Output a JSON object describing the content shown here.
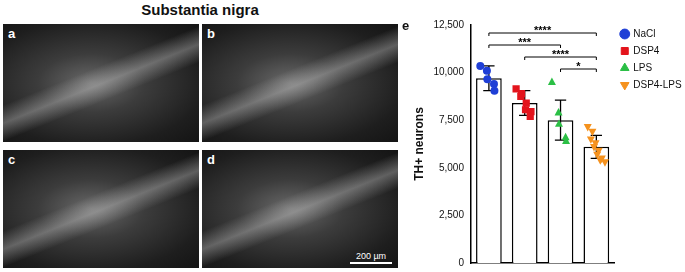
{
  "title": "Substantia nigra",
  "panels": [
    {
      "label": "a"
    },
    {
      "label": "b"
    },
    {
      "label": "c"
    },
    {
      "label": "d",
      "scale_bar": "200 µm"
    }
  ],
  "chart_data": {
    "type": "bar",
    "panel_label": "e",
    "ylabel": "TH+ neurons",
    "categories": [
      "NaCl",
      "DSP4",
      "LPS",
      "DSP4-LPS"
    ],
    "values": [
      9700,
      8400,
      7500,
      6100
    ],
    "errors": [
      650,
      650,
      1050,
      600
    ],
    "points": [
      [
        10350,
        10100,
        9650,
        9400,
        9050
      ],
      [
        9150,
        8900,
        8750,
        8400,
        8050,
        7950,
        7700
      ],
      [
        9500,
        7900,
        7300,
        6600,
        6400
      ],
      [
        7150,
        6900,
        6500,
        6300,
        6100,
        5900,
        5700,
        5500,
        5400,
        5300
      ]
    ],
    "colors": [
      "#1f3fd6",
      "#e3141c",
      "#2bbf45",
      "#f5921e"
    ],
    "markers": [
      "circle",
      "square",
      "triangle",
      "triangle-down"
    ],
    "ylim": [
      0,
      12500
    ],
    "yticks": [
      0,
      {
        "value": 2500,
        "label": "2,500"
      },
      {
        "value": 5000,
        "label": "5,000"
      },
      {
        "value": 7500,
        "label": "7,500"
      },
      {
        "value": 10000,
        "label": "10,000"
      },
      {
        "value": 12500,
        "label": "12,500"
      }
    ],
    "grid": false,
    "legend": "right",
    "tick_labels": "y",
    "significance": [
      {
        "from": "NaCl",
        "to": "DSP4-LPS",
        "label": "****"
      },
      {
        "from": "NaCl",
        "to": "LPS",
        "label": "***"
      },
      {
        "from": "DSP4",
        "to": "DSP4-LPS",
        "label": "****"
      },
      {
        "from": "LPS",
        "to": "DSP4-LPS",
        "label": "*"
      }
    ]
  }
}
